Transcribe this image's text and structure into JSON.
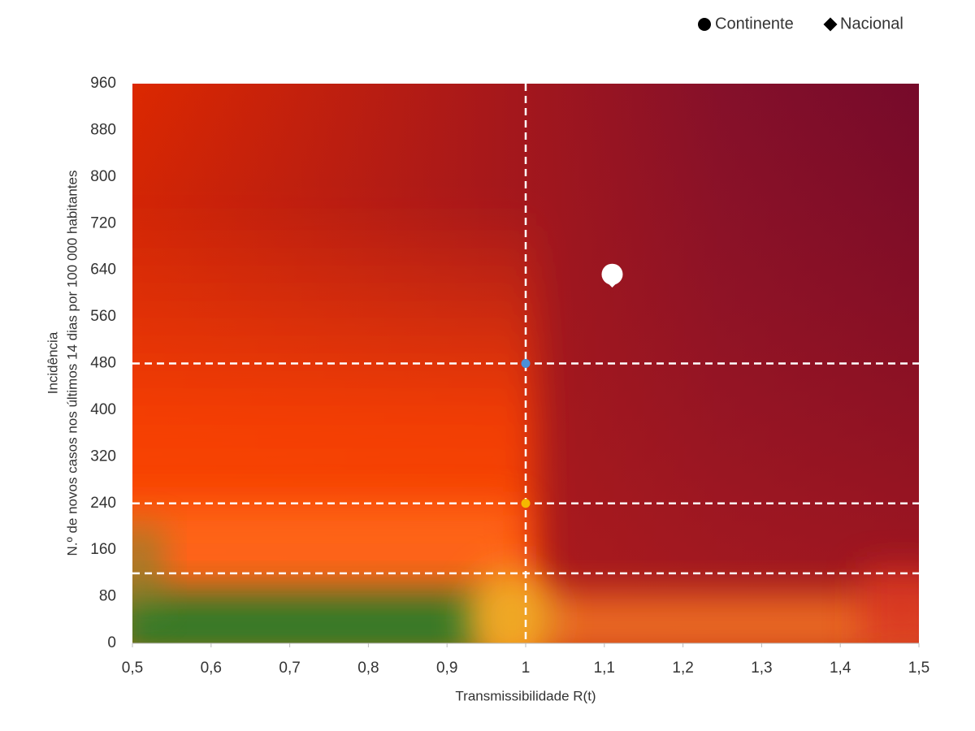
{
  "chart_data": {
    "type": "scatter",
    "xlabel": "Transmissibilidade R(t)",
    "ylabel": [
      "Incidência",
      "N.º de novos casos nos últimos 14 dias por 100 000 habitantes"
    ],
    "xlim": [
      0.5,
      1.5
    ],
    "xticks": [
      {
        "value": 0.5,
        "label": "0,5"
      },
      {
        "value": 0.6,
        "label": "0,6"
      },
      {
        "value": 0.7,
        "label": "0,7"
      },
      {
        "value": 0.8,
        "label": "0,8"
      },
      {
        "value": 0.9,
        "label": "0,9"
      },
      1,
      {
        "value": 1.1,
        "label": "1,1"
      },
      {
        "value": 1.2,
        "label": "1,2"
      },
      {
        "value": 1.3,
        "label": "1,3"
      },
      {
        "value": 1.4,
        "label": "1,4"
      },
      {
        "value": 1.5,
        "label": "1,5"
      }
    ],
    "ylim": [
      0,
      960
    ],
    "yticks": [
      0,
      80,
      160,
      240,
      320,
      400,
      480,
      560,
      640,
      720,
      800,
      880,
      960
    ],
    "series": [
      {
        "name": "Nacional",
        "marker": "diamond",
        "color": "#ffffff",
        "x": [
          1.11
        ],
        "values": [
          626
        ]
      },
      {
        "name": "Continente",
        "marker": "circle",
        "color": "#ffffff",
        "x": [
          1.11
        ],
        "values": [
          633
        ]
      }
    ],
    "legend_markers_color": "#000000",
    "reference_lines": {
      "x": [
        1
      ],
      "y": [
        480,
        240,
        120
      ],
      "color": "#ffffff"
    },
    "reference_points": [
      {
        "x": 1,
        "y": 480,
        "color": "#4a90d9"
      },
      {
        "x": 1,
        "y": 240,
        "color": "#f5b800"
      }
    ]
  }
}
